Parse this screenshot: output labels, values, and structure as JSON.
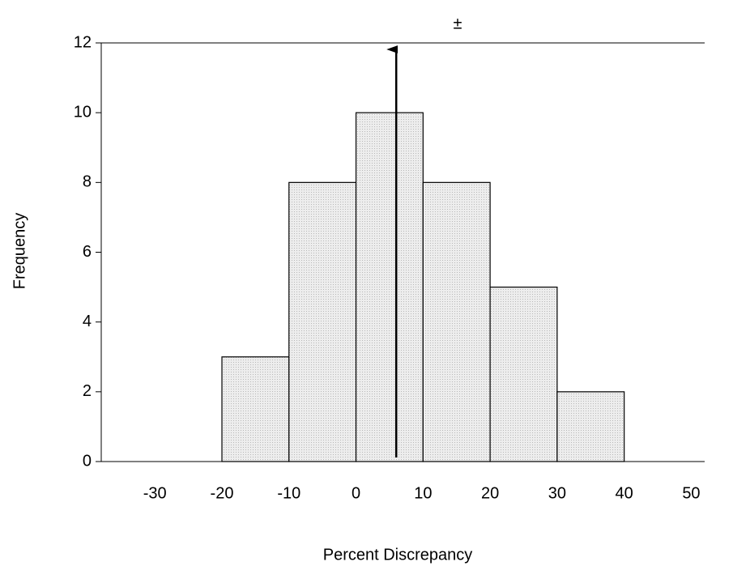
{
  "chart_data": {
    "type": "histogram",
    "annotation": "±",
    "x_label": "Percent Discrepancy",
    "y_label": "Frequency",
    "bins": [
      -20,
      -10,
      0,
      10,
      20,
      30,
      40
    ],
    "values": [
      3,
      8,
      10,
      8,
      5,
      2
    ],
    "color": "#e6e6e6",
    "marker_x": 6,
    "xlim": [
      -38,
      52
    ],
    "xticks": [
      -30,
      -20,
      -10,
      0,
      10,
      20,
      30,
      40,
      50
    ],
    "ylim": [
      0,
      12
    ],
    "yticks": [
      0,
      2,
      4,
      6,
      8,
      10,
      12
    ]
  }
}
